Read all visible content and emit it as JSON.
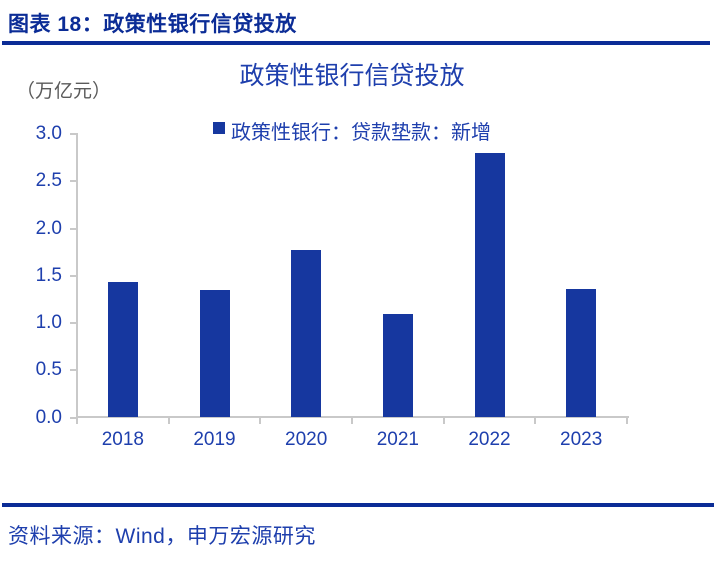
{
  "header": {
    "title": "图表 18：政策性银行信贷投放"
  },
  "chart_data": {
    "type": "bar",
    "title": "政策性银行信贷投放",
    "unit_label": "（万亿元）",
    "legend": [
      {
        "label": "政策性银行：贷款垫款：新增",
        "color": "#16379F"
      }
    ],
    "categories": [
      "2018",
      "2019",
      "2020",
      "2021",
      "2022",
      "2023"
    ],
    "values": [
      1.43,
      1.35,
      1.77,
      1.1,
      2.8,
      1.36
    ],
    "xlabel": "",
    "ylabel": "",
    "ylim": [
      0.0,
      3.0
    ],
    "ytick_labels": [
      "0.0",
      "0.5",
      "1.0",
      "1.5",
      "2.0",
      "2.5",
      "3.0"
    ],
    "grid": false,
    "legend_position": "top-center"
  },
  "footer": {
    "source": "资料来源：Wind，申万宏源研究"
  },
  "colors": {
    "brand_navy": "#0B2C96",
    "text_blue": "#1E3FAD",
    "bar_blue": "#16379F",
    "axis_grey": "#C9C9C9",
    "unit_grey": "#5A5A5A"
  }
}
